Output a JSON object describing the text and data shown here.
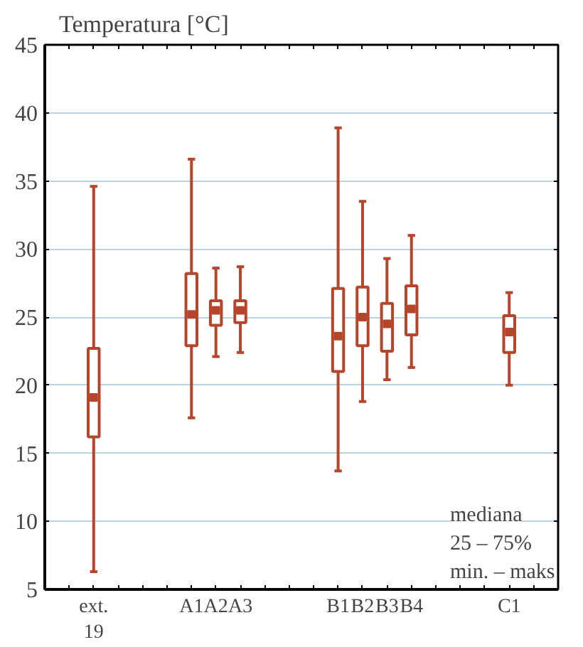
{
  "chart_data": {
    "type": "box",
    "ylabel": "Temperatura [°C]",
    "categories": [
      null,
      "ext.\n19",
      null,
      null,
      null,
      "A1",
      "A2",
      "A3",
      null,
      null,
      null,
      "B1",
      "B2",
      "B3",
      "B4",
      null,
      null,
      null,
      "C1",
      null
    ],
    "ylim": [
      5,
      45
    ],
    "yticks": [
      5,
      10,
      15,
      20,
      25,
      30,
      35,
      40,
      45
    ],
    "color": "#b5452b",
    "boxes": [
      null,
      {
        "low": 6.3,
        "q1": 16.2,
        "median": 19.1,
        "q3": 22.7,
        "high": 34.6
      },
      null,
      null,
      null,
      {
        "low": 17.6,
        "q1": 22.9,
        "median": 25.2,
        "q3": 28.2,
        "high": 36.6
      },
      {
        "low": 22.1,
        "q1": 24.4,
        "median": 25.5,
        "q3": 26.2,
        "high": 28.6
      },
      {
        "low": 22.4,
        "q1": 24.6,
        "median": 25.5,
        "q3": 26.2,
        "high": 28.7
      },
      null,
      null,
      null,
      {
        "low": 13.7,
        "q1": 21.0,
        "median": 23.6,
        "q3": 27.1,
        "high": 38.9
      },
      {
        "low": 18.8,
        "q1": 22.9,
        "median": 25.0,
        "q3": 27.2,
        "high": 33.5
      },
      {
        "low": 20.4,
        "q1": 22.5,
        "median": 24.5,
        "q3": 26.0,
        "high": 29.3
      },
      {
        "low": 21.3,
        "q1": 23.7,
        "median": 25.6,
        "q3": 27.3,
        "high": 31.0
      },
      null,
      null,
      null,
      {
        "low": 20.0,
        "q1": 22.4,
        "median": 23.9,
        "q3": 25.1,
        "high": 26.8
      },
      null
    ],
    "annotations": [
      "mediana",
      "25 – 75%",
      "min. – maks"
    ],
    "grid": "y"
  }
}
